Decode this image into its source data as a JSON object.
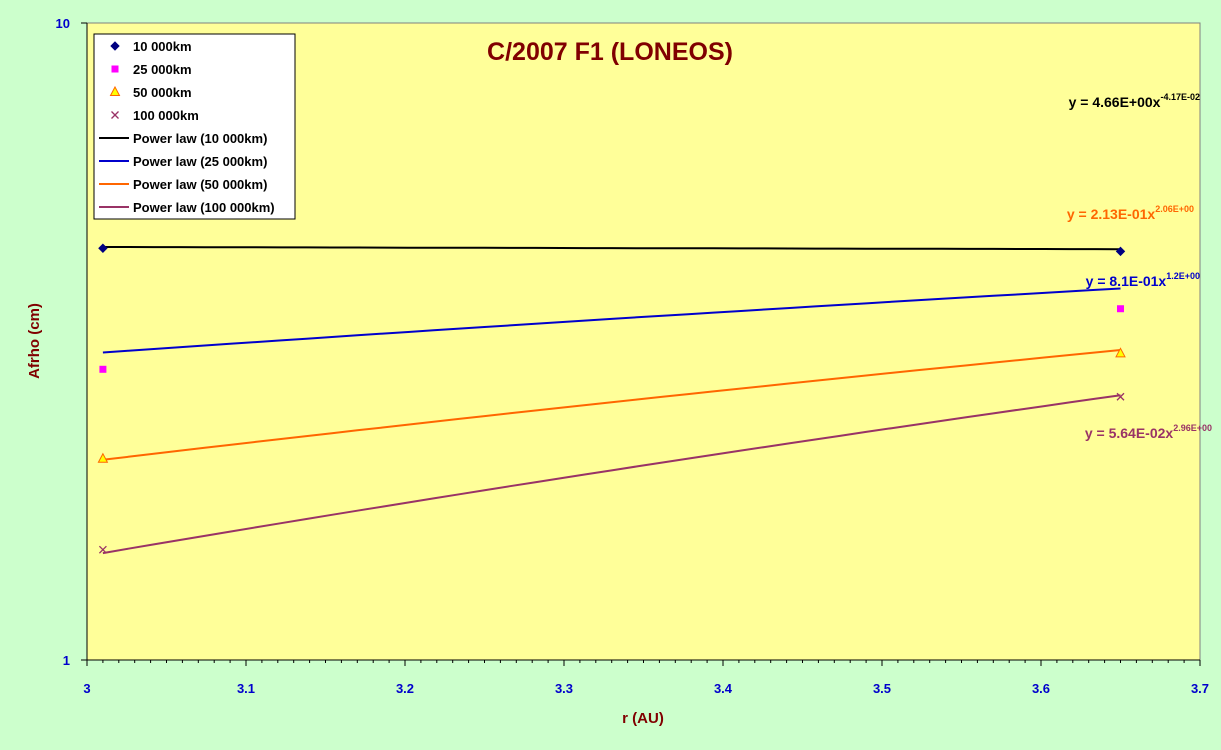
{
  "chart_data": {
    "type": "line",
    "title": "C/2007 F1 (LONEOS)",
    "xlabel": "r (AU)",
    "ylabel": "Afrho (cm)",
    "xlim": [
      3,
      3.7
    ],
    "ylim": [
      1,
      10
    ],
    "yscale": "log",
    "x_ticks": [
      "3",
      "3.1",
      "3.2",
      "3.3",
      "3.4",
      "3.5",
      "3.6",
      "3.7"
    ],
    "y_ticks": [
      "1",
      "10"
    ],
    "grid": false,
    "legend_position": "top-left",
    "background_color": "#ffff99",
    "outer_background_color": "#ccffcc",
    "series": [
      {
        "name": "10 000km",
        "marker": "diamond",
        "color": "#000080",
        "x": [
          3.01,
          3.65
        ],
        "y": [
          4.43,
          4.38
        ]
      },
      {
        "name": "25 000km",
        "marker": "square",
        "color": "#ff00ff",
        "x": [
          3.01,
          3.65
        ],
        "y": [
          2.86,
          3.56
        ]
      },
      {
        "name": "50 000km",
        "marker": "triangle",
        "color": "#ff6600",
        "x": [
          3.01,
          3.65
        ],
        "y": [
          2.07,
          3.03
        ]
      },
      {
        "name": "100 000km",
        "marker": "x",
        "color": "#993366",
        "x": [
          3.01,
          3.65
        ],
        "y": [
          1.49,
          2.59
        ]
      }
    ],
    "trendlines": [
      {
        "name": "Power law (10 000km)",
        "color": "#000000",
        "a": 4.66,
        "b": -0.0417,
        "label": "y = 4.66E+00x",
        "exponent": "-4.17E-02"
      },
      {
        "name": "Power law (25 000km)",
        "color": "#0000cc",
        "a": 0.81,
        "b": 1.2,
        "label": "y = 8.1E-01x",
        "exponent": "1.2E+00"
      },
      {
        "name": "Power law (50 000km)",
        "color": "#ff6600",
        "a": 0.213,
        "b": 2.06,
        "label": "y = 2.13E-01x",
        "exponent": "2.06E+00"
      },
      {
        "name": "Power law (100 000km)",
        "color": "#993366",
        "a": 0.0564,
        "b": 2.96,
        "label": "y = 5.64E-02x",
        "exponent": "2.96E+00"
      }
    ]
  }
}
